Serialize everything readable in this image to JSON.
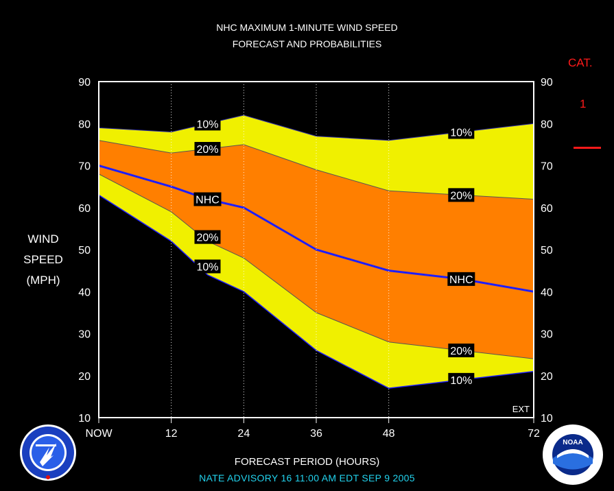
{
  "title_line1": "NHC MAXIMUM 1-MINUTE WIND SPEED",
  "title_line2": "FORECAST AND PROBABILITIES",
  "ylabel": [
    "WIND",
    "SPEED",
    "(MPH)"
  ],
  "xlabel": "FORECAST PERIOD (HOURS)",
  "footer": "NATE   ADVISORY  16 11:00  AM  EDT  SEP  9  2005",
  "category": {
    "label": "CAT.",
    "value": "1",
    "color": "#ff1a1a"
  },
  "ext_label": "EXT",
  "logos": {
    "left": "nws-logo",
    "right": "noaa-logo",
    "right_text": "NOAA"
  },
  "colors": {
    "outer_band": "#f0f000",
    "inner_band": "#ff7f00",
    "nhc_line": "#1e1eff",
    "background": "#000000"
  },
  "chart_data": {
    "type": "area",
    "x": [
      0,
      12,
      18,
      24,
      36,
      48,
      60,
      72
    ],
    "x_tick_labels": [
      "NOW",
      "12",
      "24",
      "36",
      "48",
      "72"
    ],
    "x_tick_values": [
      0,
      12,
      24,
      36,
      48,
      72
    ],
    "ylim": [
      10,
      90
    ],
    "y_ticks": [
      10,
      20,
      30,
      40,
      50,
      60,
      70,
      80,
      90
    ],
    "grid_x": [
      12,
      24,
      36,
      48
    ],
    "series": [
      {
        "name": "10%",
        "values": [
          79,
          78,
          80,
          82,
          77,
          76,
          78,
          80
        ]
      },
      {
        "name": "20%",
        "values": [
          76,
          73,
          74,
          75,
          69,
          64,
          63,
          62
        ]
      },
      {
        "name": "NHC",
        "values": [
          70,
          65,
          62,
          60,
          50,
          45,
          43,
          40
        ]
      },
      {
        "name": "20%",
        "values": [
          68,
          59,
          52,
          48,
          35,
          28,
          26,
          24
        ]
      },
      {
        "name": "10%",
        "values": [
          63,
          52,
          44,
          40,
          26,
          17,
          19,
          21
        ]
      }
    ],
    "labels": [
      {
        "text": "10%",
        "x": 18,
        "y": 80
      },
      {
        "text": "20%",
        "x": 18,
        "y": 74
      },
      {
        "text": "NHC",
        "x": 18,
        "y": 62
      },
      {
        "text": "20%",
        "x": 18,
        "y": 53
      },
      {
        "text": "10%",
        "x": 18,
        "y": 46
      },
      {
        "text": "10%",
        "x": 60,
        "y": 78
      },
      {
        "text": "20%",
        "x": 60,
        "y": 63
      },
      {
        "text": "NHC",
        "x": 60,
        "y": 43
      },
      {
        "text": "20%",
        "x": 60,
        "y": 26
      },
      {
        "text": "10%",
        "x": 60,
        "y": 19
      }
    ]
  }
}
